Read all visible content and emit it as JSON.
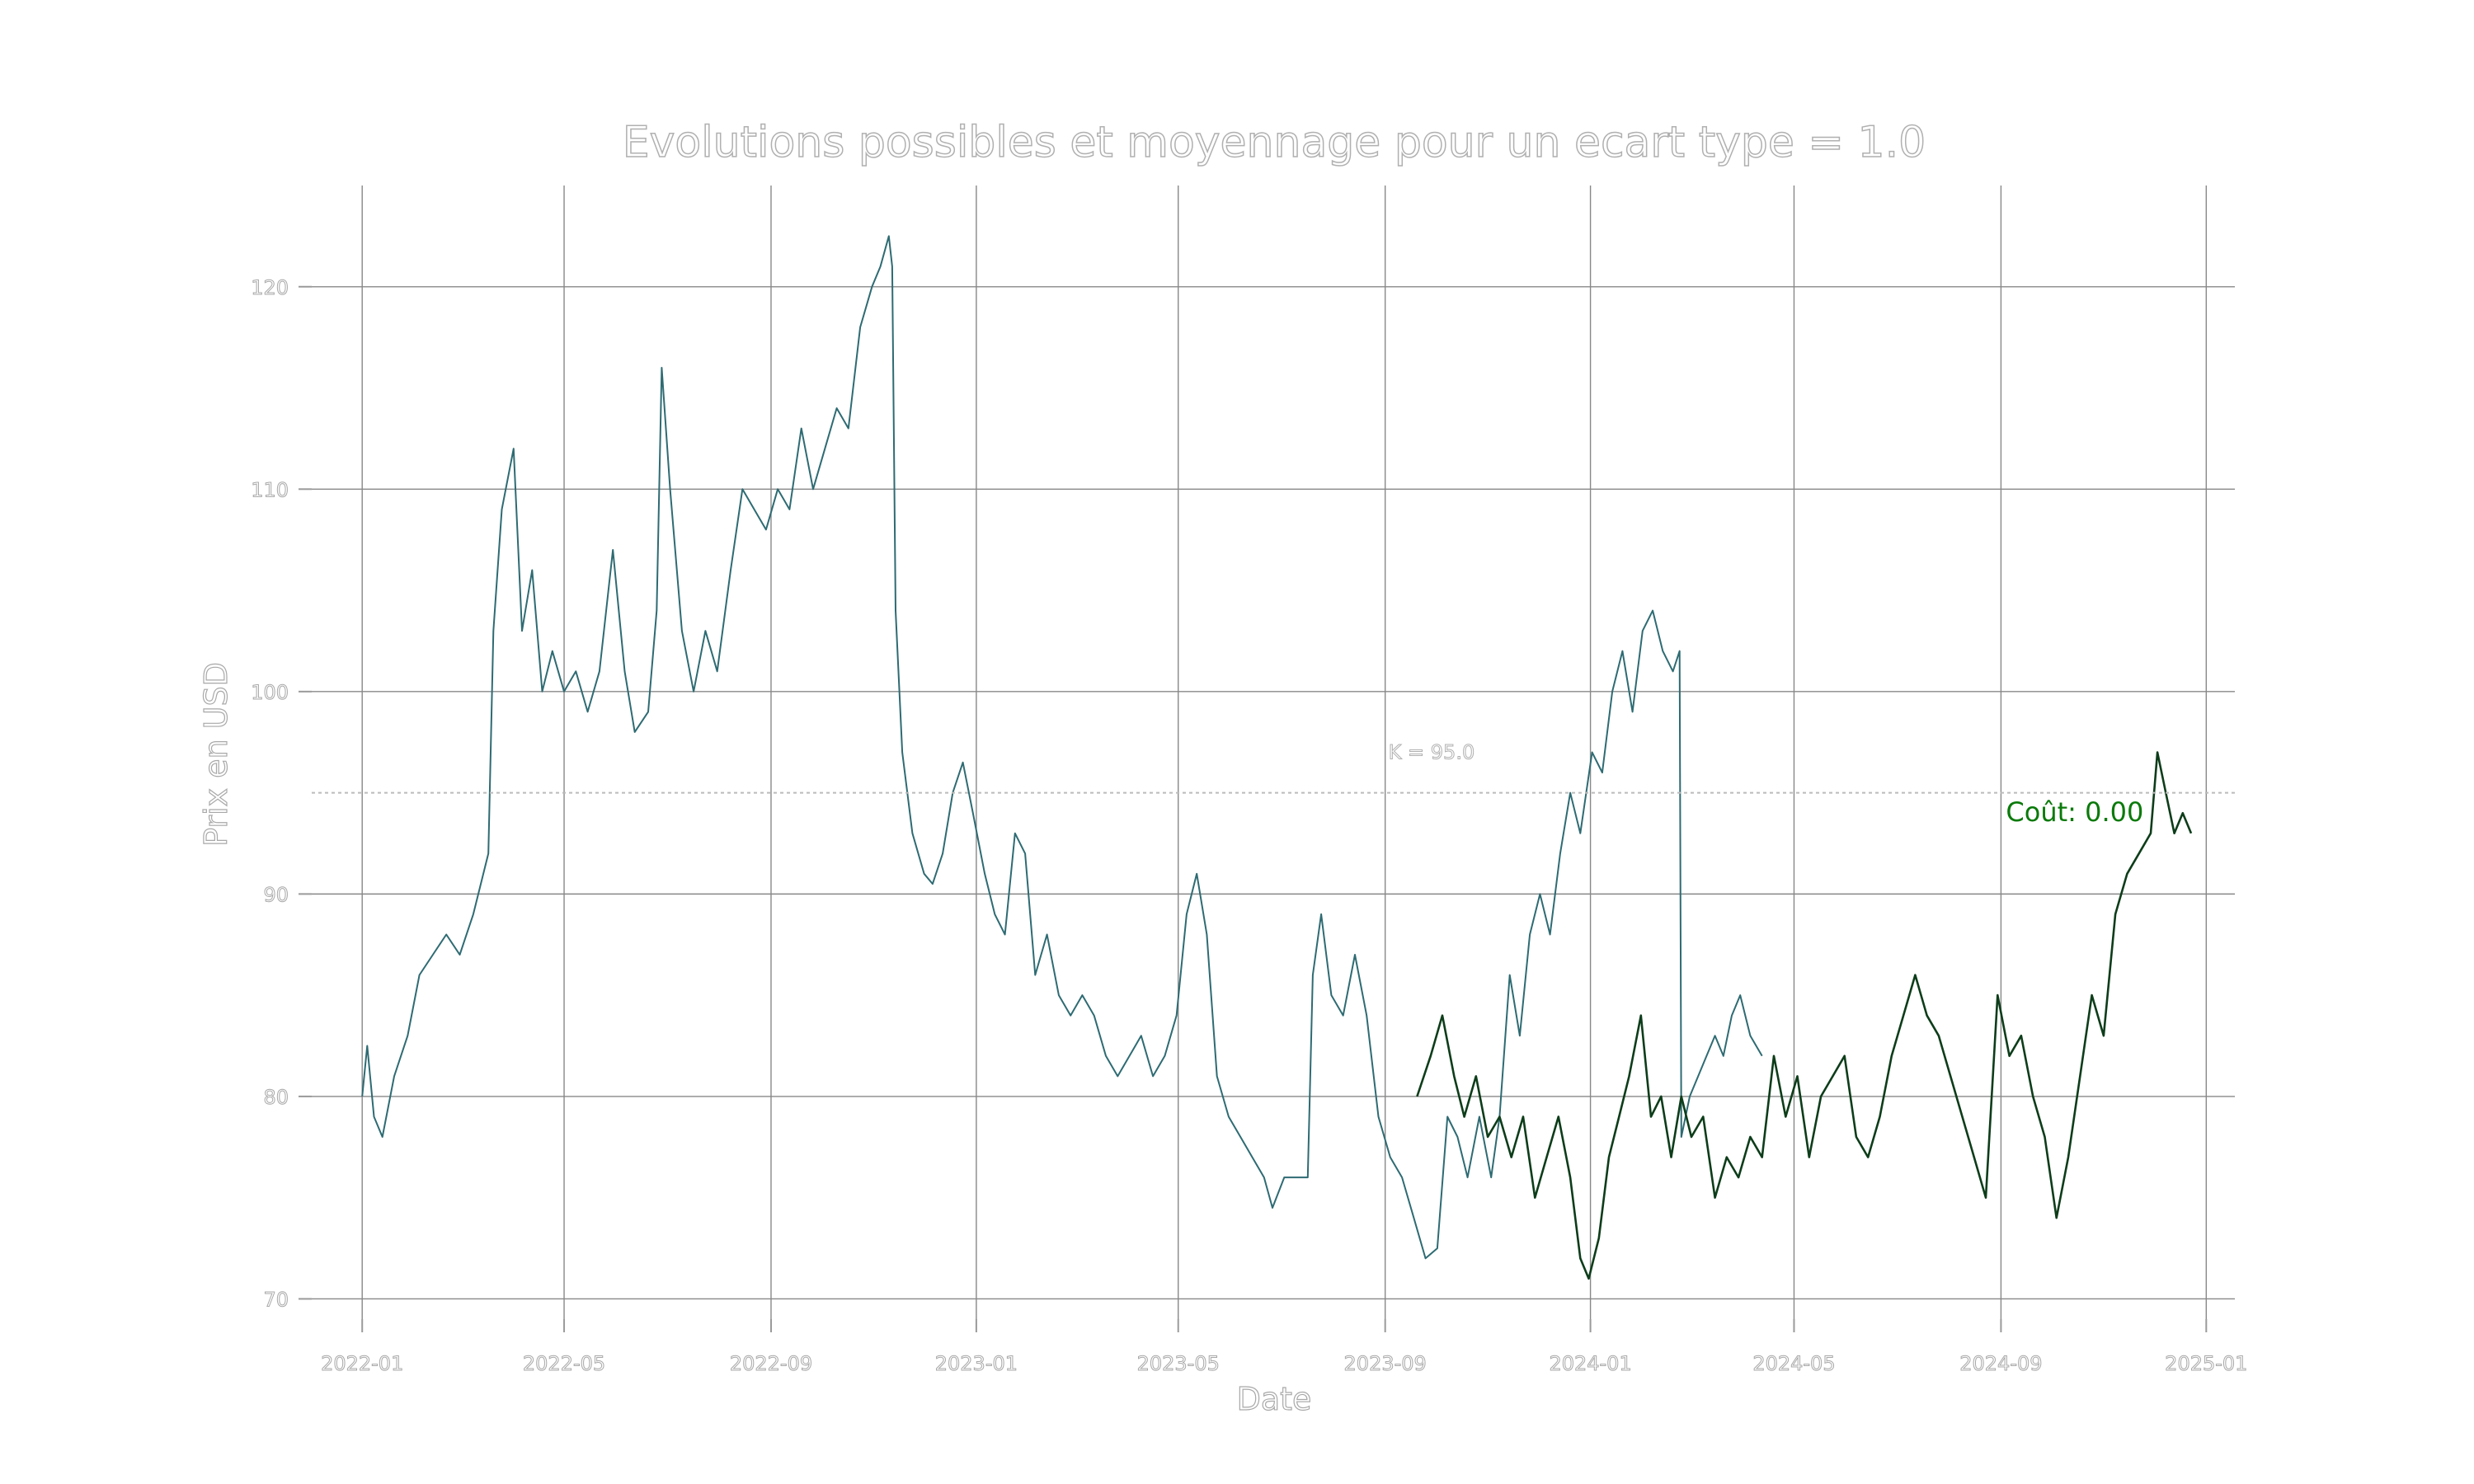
{
  "chart_data": {
    "type": "line",
    "title": "Evolutions possibles et moyennage pour un ecart type = 1.0",
    "xlabel": "Date",
    "ylabel": "Prix en USD",
    "xlim": [
      "2021-12-02",
      "2025-01-18"
    ],
    "ylim": [
      69,
      125
    ],
    "grid": true,
    "x_ticks": [
      "2022-01",
      "2022-05",
      "2022-09",
      "2023-01",
      "2023-05",
      "2023-09",
      "2024-01",
      "2024-05",
      "2024-09",
      "2025-01"
    ],
    "y_ticks": [
      70,
      80,
      90,
      100,
      110,
      120
    ],
    "strike": {
      "value": 95,
      "label": "K = 95.0"
    },
    "annotation": {
      "text": "Coût: 0.00",
      "x": "2024-09-01",
      "y": 94,
      "color": "#0a7a0a"
    },
    "series": [
      {
        "color": "#2e6b73",
        "points": [
          [
            "2022-01-01",
            80
          ],
          [
            "2022-01-04",
            82.5
          ],
          [
            "2022-01-08",
            79
          ],
          [
            "2022-01-13",
            78
          ],
          [
            "2022-01-20",
            81
          ],
          [
            "2022-01-28",
            83
          ],
          [
            "2022-02-04",
            86
          ],
          [
            "2022-02-12",
            87
          ],
          [
            "2022-02-20",
            88
          ],
          [
            "2022-02-28",
            87
          ],
          [
            "2022-03-08",
            89
          ],
          [
            "2022-03-17",
            92
          ],
          [
            "2022-03-20",
            103
          ],
          [
            "2022-03-25",
            109
          ],
          [
            "2022-04-01",
            112
          ],
          [
            "2022-04-06",
            103
          ],
          [
            "2022-04-12",
            106
          ],
          [
            "2022-04-18",
            100
          ],
          [
            "2022-04-24",
            102
          ],
          [
            "2022-05-01",
            100
          ],
          [
            "2022-05-08",
            101
          ],
          [
            "2022-05-15",
            99
          ],
          [
            "2022-05-22",
            101
          ],
          [
            "2022-05-30",
            107
          ],
          [
            "2022-06-06",
            101
          ],
          [
            "2022-06-12",
            98
          ],
          [
            "2022-06-20",
            99
          ],
          [
            "2022-06-25",
            104
          ],
          [
            "2022-06-28",
            116
          ],
          [
            "2022-07-03",
            110
          ],
          [
            "2022-07-10",
            103
          ],
          [
            "2022-07-17",
            100
          ],
          [
            "2022-07-24",
            103
          ],
          [
            "2022-07-31",
            101
          ],
          [
            "2022-08-08",
            106
          ],
          [
            "2022-08-15",
            110
          ],
          [
            "2022-08-22",
            109
          ],
          [
            "2022-08-29",
            108
          ],
          [
            "2022-09-05",
            110
          ],
          [
            "2022-09-12",
            109
          ],
          [
            "2022-09-19",
            113
          ],
          [
            "2022-09-26",
            110
          ],
          [
            "2022-10-03",
            112
          ],
          [
            "2022-10-10",
            114
          ],
          [
            "2022-10-17",
            113
          ],
          [
            "2022-10-24",
            118
          ],
          [
            "2022-10-31",
            120
          ],
          [
            "2022-11-05",
            121
          ],
          [
            "2022-11-10",
            122.5
          ],
          [
            "2022-11-12",
            121
          ],
          [
            "2022-11-14",
            104
          ],
          [
            "2022-11-18",
            97
          ],
          [
            "2022-11-24",
            93
          ],
          [
            "2022-12-01",
            91
          ],
          [
            "2022-12-06",
            90.5
          ],
          [
            "2022-12-12",
            92
          ],
          [
            "2022-12-18",
            95
          ],
          [
            "2022-12-24",
            96.5
          ],
          [
            "2022-12-30",
            94
          ],
          [
            "2023-01-06",
            91
          ],
          [
            "2023-01-12",
            89
          ],
          [
            "2023-01-18",
            88
          ],
          [
            "2023-01-24",
            93
          ],
          [
            "2023-01-30",
            92
          ],
          [
            "2023-02-05",
            86
          ],
          [
            "2023-02-12",
            88
          ],
          [
            "2023-02-19",
            85
          ],
          [
            "2023-02-26",
            84
          ],
          [
            "2023-03-05",
            85
          ],
          [
            "2023-03-12",
            84
          ],
          [
            "2023-03-19",
            82
          ],
          [
            "2023-03-26",
            81
          ],
          [
            "2023-04-02",
            82
          ],
          [
            "2023-04-09",
            83
          ],
          [
            "2023-04-16",
            81
          ],
          [
            "2023-04-23",
            82
          ],
          [
            "2023-04-30",
            84
          ],
          [
            "2023-05-06",
            89
          ],
          [
            "2023-05-12",
            91
          ],
          [
            "2023-05-18",
            88
          ],
          [
            "2023-05-24",
            81
          ],
          [
            "2023-05-31",
            79
          ],
          [
            "2023-06-07",
            78
          ],
          [
            "2023-06-14",
            77
          ],
          [
            "2023-06-21",
            76
          ],
          [
            "2023-06-26",
            74.5
          ],
          [
            "2023-07-03",
            76
          ],
          [
            "2023-07-10",
            76
          ],
          [
            "2023-07-17",
            76
          ],
          [
            "2023-07-20",
            86
          ],
          [
            "2023-07-25",
            89
          ],
          [
            "2023-07-31",
            85
          ],
          [
            "2023-08-07",
            84
          ],
          [
            "2023-08-14",
            87
          ],
          [
            "2023-08-21",
            84
          ],
          [
            "2023-08-28",
            79
          ],
          [
            "2023-09-04",
            77
          ],
          [
            "2023-09-11",
            76
          ],
          [
            "2023-09-18",
            74
          ],
          [
            "2023-09-25",
            72
          ],
          [
            "2023-10-02",
            72.5
          ],
          [
            "2023-10-08",
            79
          ],
          [
            "2023-10-14",
            78
          ],
          [
            "2023-10-20",
            76
          ],
          [
            "2023-10-27",
            79
          ],
          [
            "2023-11-03",
            76
          ],
          [
            "2023-11-08",
            79
          ],
          [
            "2023-11-14",
            86
          ],
          [
            "2023-11-20",
            83
          ],
          [
            "2023-11-26",
            88
          ],
          [
            "2023-12-02",
            90
          ],
          [
            "2023-12-08",
            88
          ],
          [
            "2023-12-14",
            92
          ],
          [
            "2023-12-20",
            95
          ],
          [
            "2023-12-26",
            93
          ],
          [
            "2024-01-02",
            97
          ],
          [
            "2024-01-08",
            96
          ],
          [
            "2024-01-14",
            100
          ],
          [
            "2024-01-20",
            102
          ],
          [
            "2024-01-26",
            99
          ],
          [
            "2024-02-01",
            103
          ],
          [
            "2024-02-07",
            104
          ],
          [
            "2024-02-13",
            102
          ],
          [
            "2024-02-19",
            101
          ],
          [
            "2024-02-23",
            102
          ],
          [
            "2024-02-24",
            78
          ],
          [
            "2024-02-29",
            80
          ],
          [
            "2024-03-05",
            81
          ],
          [
            "2024-03-10",
            82
          ],
          [
            "2024-03-15",
            83
          ],
          [
            "2024-03-20",
            82
          ],
          [
            "2024-03-25",
            84
          ],
          [
            "2024-03-30",
            85
          ],
          [
            "2024-04-05",
            83
          ],
          [
            "2024-04-12",
            82
          ]
        ]
      },
      {
        "color": "#0d3d1a",
        "points": [
          [
            "2023-09-20",
            80
          ],
          [
            "2023-09-28",
            82
          ],
          [
            "2023-10-05",
            84
          ],
          [
            "2023-10-12",
            81
          ],
          [
            "2023-10-18",
            79
          ],
          [
            "2023-10-25",
            81
          ],
          [
            "2023-11-01",
            78
          ],
          [
            "2023-11-08",
            79
          ],
          [
            "2023-11-15",
            77
          ],
          [
            "2023-11-22",
            79
          ],
          [
            "2023-11-29",
            75
          ],
          [
            "2023-12-06",
            77
          ],
          [
            "2023-12-13",
            79
          ],
          [
            "2023-12-20",
            76
          ],
          [
            "2023-12-26",
            72
          ],
          [
            "2023-12-31",
            71
          ],
          [
            "2024-01-06",
            73
          ],
          [
            "2024-01-12",
            77
          ],
          [
            "2024-01-18",
            79
          ],
          [
            "2024-01-24",
            81
          ],
          [
            "2024-01-31",
            84
          ],
          [
            "2024-02-06",
            79
          ],
          [
            "2024-02-12",
            80
          ],
          [
            "2024-02-18",
            77
          ],
          [
            "2024-02-24",
            80
          ],
          [
            "2024-03-01",
            78
          ],
          [
            "2024-03-08",
            79
          ],
          [
            "2024-03-15",
            75
          ],
          [
            "2024-03-22",
            77
          ],
          [
            "2024-03-29",
            76
          ],
          [
            "2024-04-05",
            78
          ],
          [
            "2024-04-12",
            77
          ],
          [
            "2024-04-19",
            82
          ],
          [
            "2024-04-26",
            79
          ],
          [
            "2024-05-03",
            81
          ],
          [
            "2024-05-10",
            77
          ],
          [
            "2024-05-17",
            80
          ],
          [
            "2024-05-24",
            81
          ],
          [
            "2024-05-31",
            82
          ],
          [
            "2024-06-07",
            78
          ],
          [
            "2024-06-14",
            77
          ],
          [
            "2024-06-21",
            79
          ],
          [
            "2024-06-28",
            82
          ],
          [
            "2024-07-05",
            84
          ],
          [
            "2024-07-12",
            86
          ],
          [
            "2024-07-19",
            84
          ],
          [
            "2024-07-26",
            83
          ],
          [
            "2024-08-02",
            81
          ],
          [
            "2024-08-09",
            79
          ],
          [
            "2024-08-16",
            77
          ],
          [
            "2024-08-23",
            75
          ],
          [
            "2024-08-30",
            85
          ],
          [
            "2024-09-06",
            82
          ],
          [
            "2024-09-13",
            83
          ],
          [
            "2024-09-20",
            80
          ],
          [
            "2024-09-27",
            78
          ],
          [
            "2024-10-04",
            74
          ],
          [
            "2024-10-11",
            77
          ],
          [
            "2024-10-18",
            81
          ],
          [
            "2024-10-25",
            85
          ],
          [
            "2024-11-01",
            83
          ],
          [
            "2024-11-08",
            89
          ],
          [
            "2024-11-15",
            91
          ],
          [
            "2024-11-22",
            92
          ],
          [
            "2024-11-29",
            93
          ],
          [
            "2024-12-03",
            97
          ],
          [
            "2024-12-08",
            95
          ],
          [
            "2024-12-13",
            93
          ],
          [
            "2024-12-18",
            94
          ],
          [
            "2024-12-23",
            93
          ]
        ]
      }
    ]
  }
}
